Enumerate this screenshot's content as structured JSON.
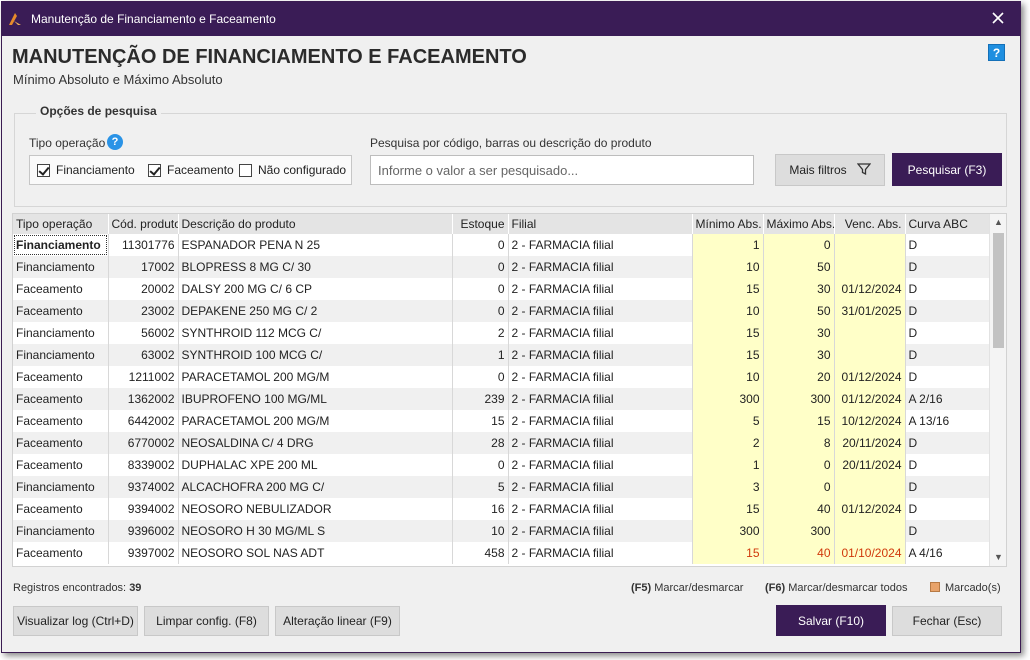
{
  "window": {
    "title": "Manutenção de Financiamento e Faceamento"
  },
  "header": {
    "title": "MANUTENÇÃO DE FINANCIAMENTO E FACEAMENTO",
    "subtitle": "Mínimo Absoluto e Máximo Absoluto",
    "help": "?"
  },
  "search_panel": {
    "legend": "Opções de pesquisa",
    "tipo_label": "Tipo operação",
    "checkboxes": [
      {
        "label": "Financiamento",
        "checked": true
      },
      {
        "label": "Faceamento",
        "checked": true
      },
      {
        "label": "Não configurado",
        "checked": false
      }
    ],
    "search_label": "Pesquisa por código, barras ou descrição do produto",
    "search_placeholder": "Informe o valor a ser pesquisado...",
    "search_value": "",
    "more_filters": "Mais filtros",
    "search_button": "Pesquisar (F3)"
  },
  "grid": {
    "columns": [
      "Tipo operação",
      "Cód. produto",
      "Descrição do produto",
      "Estoque",
      "Filial",
      "Mínimo Abs.",
      "Máximo Abs.",
      "Venc. Abs.",
      "Curva ABC"
    ],
    "rows": [
      [
        "Financiamento",
        "11301776",
        "ESPANADOR PENA N 25",
        "0",
        "2 - FARMACIA filial",
        "1",
        "0",
        "",
        "D"
      ],
      [
        "Financiamento",
        "17002",
        "BLOPRESS 8 MG C/ 30",
        "0",
        "2 - FARMACIA filial",
        "10",
        "50",
        "",
        "D"
      ],
      [
        "Faceamento",
        "20002",
        "DALSY 200 MG C/ 6 CP",
        "0",
        "2 - FARMACIA filial",
        "15",
        "30",
        "01/12/2024",
        "D"
      ],
      [
        "Faceamento",
        "23002",
        "DEPAKENE 250 MG C/ 2",
        "0",
        "2 - FARMACIA filial",
        "10",
        "50",
        "31/01/2025",
        "D"
      ],
      [
        "Financiamento",
        "56002",
        "SYNTHROID 112 MCG C/",
        "2",
        "2 - FARMACIA filial",
        "15",
        "30",
        "",
        "D"
      ],
      [
        "Financiamento",
        "63002",
        "SYNTHROID 100 MCG C/",
        "1",
        "2 - FARMACIA filial",
        "15",
        "30",
        "",
        "D"
      ],
      [
        "Faceamento",
        "1211002",
        "PARACETAMOL 200 MG/M",
        "0",
        "2 - FARMACIA filial",
        "10",
        "20",
        "01/12/2024",
        "D"
      ],
      [
        "Faceamento",
        "1362002",
        "IBUPROFENO 100 MG/ML",
        "239",
        "2 - FARMACIA filial",
        "300",
        "300",
        "01/12/2024",
        "A 2/16"
      ],
      [
        "Faceamento",
        "6442002",
        "PARACETAMOL 200 MG/M",
        "15",
        "2 - FARMACIA filial",
        "5",
        "15",
        "10/12/2024",
        "A 13/16"
      ],
      [
        "Faceamento",
        "6770002",
        "NEOSALDINA C/ 4 DRG",
        "28",
        "2 - FARMACIA filial",
        "2",
        "8",
        "20/11/2024",
        "D"
      ],
      [
        "Faceamento",
        "8339002",
        "DUPHALAC XPE 200 ML",
        "0",
        "2 - FARMACIA filial",
        "1",
        "0",
        "20/11/2024",
        "D"
      ],
      [
        "Financiamento",
        "9374002",
        "ALCACHOFRA 200 MG C/",
        "5",
        "2 - FARMACIA filial",
        "3",
        "0",
        "",
        "D"
      ],
      [
        "Faceamento",
        "9394002",
        "NEOSORO NEBULIZADOR",
        "16",
        "2 - FARMACIA filial",
        "15",
        "40",
        "01/12/2024",
        "D"
      ],
      [
        "Financiamento",
        "9396002",
        "NEOSORO H 30 MG/ML S",
        "10",
        "2 - FARMACIA filial",
        "300",
        "300",
        "",
        "D"
      ],
      [
        "Faceamento",
        "9397002",
        "NEOSORO SOL NAS ADT",
        "458",
        "2 - FARMACIA filial",
        "15",
        "40",
        "01/10/2024",
        "A 4/16"
      ]
    ],
    "selected_row": 0,
    "highlighted_row": 14
  },
  "footer": {
    "records_label": "Registros encontrados:",
    "records_count": "39",
    "f5_key": "(F5)",
    "f5_text": "Marcar/desmarcar",
    "f6_key": "(F6)",
    "f6_text": "Marcar/desmarcar todos",
    "marked": "Marcado(s)"
  },
  "buttons": {
    "log": "Visualizar log (Ctrl+D)",
    "limpar": "Limpar config. (F8)",
    "alteracao": "Alteração linear (F9)",
    "salvar": "Salvar (F10)",
    "fechar": "Fechar (Esc)"
  },
  "colors": {
    "brand": "#3a1c56",
    "editable_cell": "#ffffc8",
    "warning_text": "#d0390b",
    "marked": "#e8a36a"
  }
}
